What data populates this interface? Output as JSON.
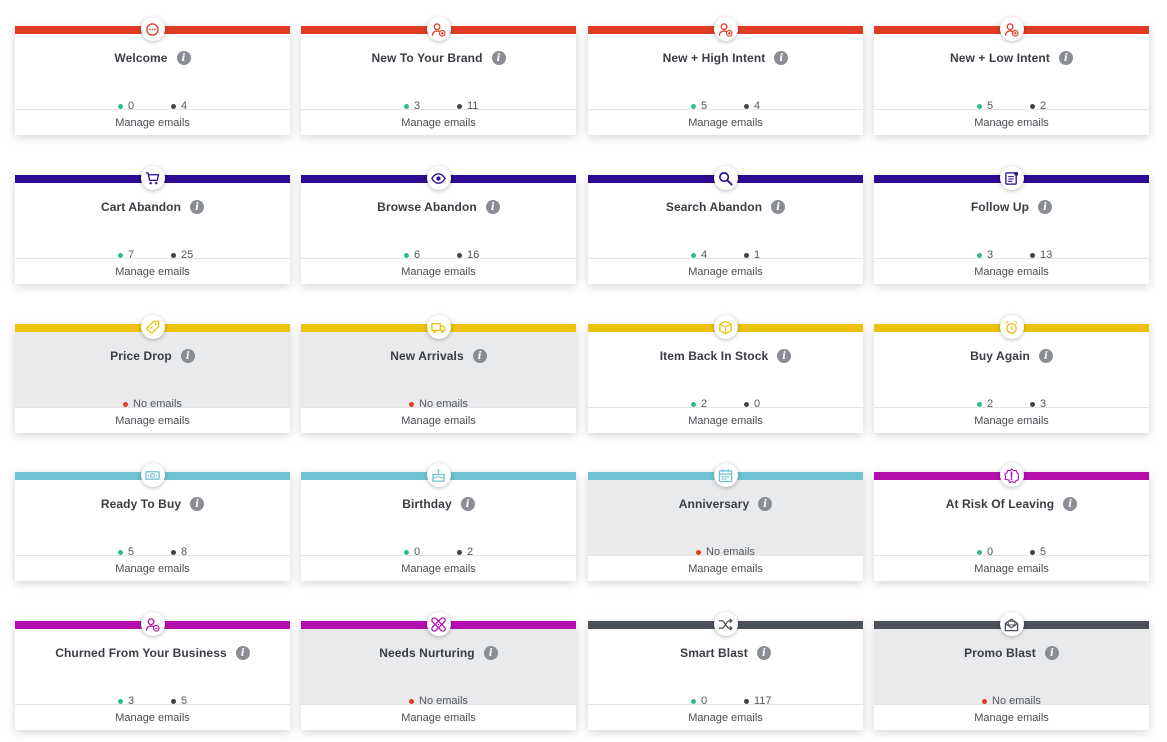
{
  "manage_label": "Manage emails",
  "no_emails_label": "No emails",
  "info_glyph": "i",
  "colors": {
    "red": "#e03b24",
    "indigo": "#2c0a91",
    "yellow": "#ebc30f",
    "sky": "#6ec2d3",
    "magenta": "#b40fad",
    "slate": "#4c5159",
    "active_dot": "#2ebd8a",
    "total_dot": "#41444a"
  },
  "cards": [
    {
      "title": "Welcome",
      "active": "0",
      "total": "4",
      "color": "red",
      "icon": "chat-bubble-icon"
    },
    {
      "title": "New To Your Brand",
      "active": "3",
      "total": "11",
      "color": "red",
      "icon": "person-add-icon"
    },
    {
      "title": "New + High Intent",
      "active": "5",
      "total": "4",
      "color": "red",
      "icon": "person-add-icon"
    },
    {
      "title": "New + Low Intent",
      "active": "5",
      "total": "2",
      "color": "red",
      "icon": "person-add-icon"
    },
    {
      "title": "Cart Abandon",
      "active": "7",
      "total": "25",
      "color": "indigo",
      "icon": "cart-icon"
    },
    {
      "title": "Browse Abandon",
      "active": "6",
      "total": "16",
      "color": "indigo",
      "icon": "eye-icon"
    },
    {
      "title": "Search Abandon",
      "active": "4",
      "total": "1",
      "color": "indigo",
      "icon": "magnifier-icon"
    },
    {
      "title": "Follow Up",
      "active": "3",
      "total": "13",
      "color": "indigo",
      "icon": "document-icon"
    },
    {
      "title": "Price Drop",
      "empty": true,
      "color": "yellow",
      "icon": "price-tag-icon"
    },
    {
      "title": "New Arrivals",
      "empty": true,
      "color": "yellow",
      "icon": "truck-icon"
    },
    {
      "title": "Item Back In Stock",
      "active": "2",
      "total": "0",
      "color": "yellow",
      "icon": "box-icon"
    },
    {
      "title": "Buy Again",
      "active": "2",
      "total": "3",
      "color": "yellow",
      "icon": "alarm-clock-icon"
    },
    {
      "title": "Ready To Buy",
      "active": "5",
      "total": "8",
      "color": "sky",
      "icon": "cash-icon"
    },
    {
      "title": "Birthday",
      "active": "0",
      "total": "2",
      "color": "sky",
      "icon": "cake-icon"
    },
    {
      "title": "Anniversary",
      "empty": true,
      "color": "sky",
      "icon": "calendar-icon"
    },
    {
      "title": "At Risk Of Leaving",
      "active": "0",
      "total": "5",
      "color": "magenta",
      "icon": "warning-icon"
    },
    {
      "title": "Churned From Your Business",
      "active": "3",
      "total": "5",
      "color": "magenta",
      "icon": "person-remove-icon"
    },
    {
      "title": "Needs Nurturing",
      "empty": true,
      "color": "magenta",
      "icon": "bandage-icon"
    },
    {
      "title": "Smart Blast",
      "active": "0",
      "total": "117",
      "color": "slate",
      "icon": "shuffle-icon"
    },
    {
      "title": "Promo Blast",
      "empty": true,
      "color": "slate",
      "icon": "open-envelope-icon"
    }
  ]
}
